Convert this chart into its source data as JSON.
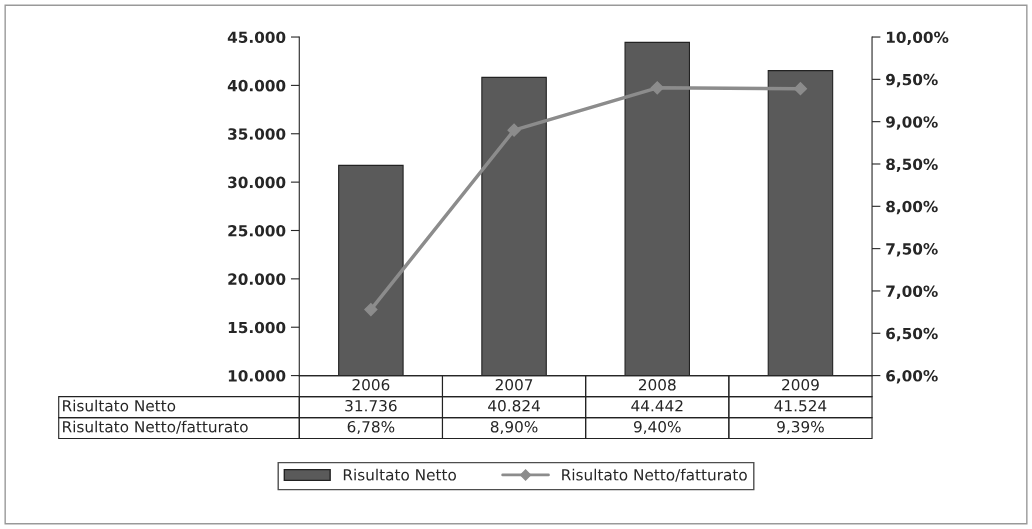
{
  "chart_data": {
    "type": "bar",
    "categories": [
      "2006",
      "2007",
      "2008",
      "2009"
    ],
    "series": [
      {
        "name": "Risultato Netto",
        "color": "#5a5a5a",
        "values": [
          31736,
          40824,
          44442,
          41524
        ],
        "value_labels": [
          "31.736",
          "40.824",
          "44.442",
          "41.524"
        ]
      },
      {
        "name": "Risultato Netto/fatturato",
        "type": "line",
        "axis": "y2",
        "color": "#8c8c8c",
        "marker": "diamond",
        "line_style": "solid",
        "values": [
          6.78,
          8.9,
          9.4,
          9.39
        ],
        "value_labels": [
          "6,78%",
          "8,90%",
          "9,40%",
          "9,39%"
        ]
      }
    ],
    "ylim": [
      10000,
      45000
    ],
    "yticks": [
      {
        "value": 10000,
        "label": "10.000"
      },
      {
        "value": 15000,
        "label": "15.000"
      },
      {
        "value": 20000,
        "label": "20.000"
      },
      {
        "value": 25000,
        "label": "25.000"
      },
      {
        "value": 30000,
        "label": "30.000"
      },
      {
        "value": 35000,
        "label": "35.000"
      },
      {
        "value": 40000,
        "label": "40.000"
      },
      {
        "value": 45000,
        "label": "45.000"
      }
    ],
    "y2lim": [
      6,
      10
    ],
    "y2ticks": [
      {
        "value": 6,
        "label": "6,00%"
      },
      {
        "value": 6.5,
        "label": "6,50%"
      },
      {
        "value": 7,
        "label": "7,00%"
      },
      {
        "value": 7.5,
        "label": "7,50%"
      },
      {
        "value": 8,
        "label": "8,00%"
      },
      {
        "value": 8.5,
        "label": "8,50%"
      },
      {
        "value": 9,
        "label": "9,00%"
      },
      {
        "value": 9.5,
        "label": "9,50%"
      },
      {
        "value": 10,
        "label": "10,00%"
      }
    ],
    "legend": "bottom",
    "grid": false
  }
}
